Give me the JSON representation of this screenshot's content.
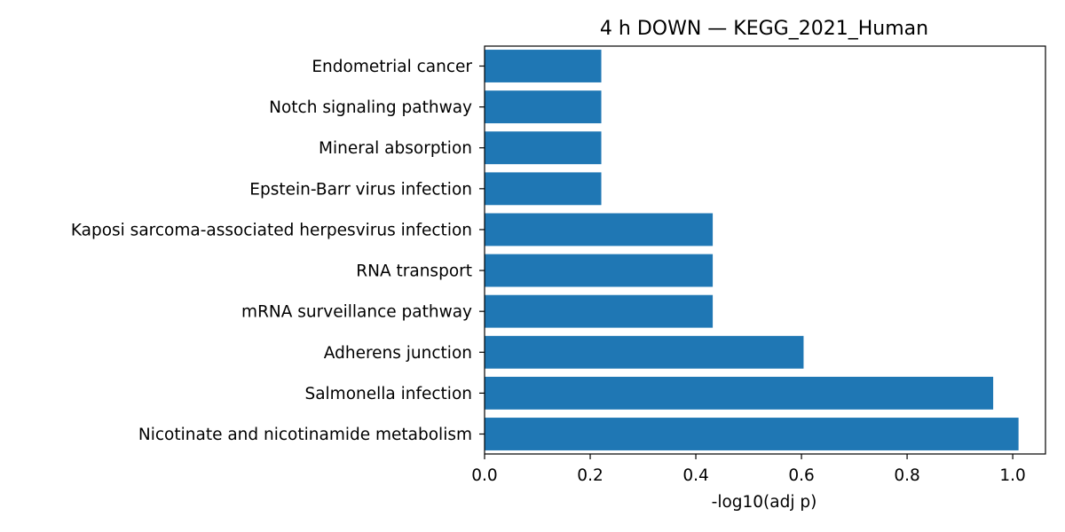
{
  "chart_data": {
    "type": "bar",
    "orientation": "horizontal",
    "title": "4 h DOWN — KEGG_2021_Human",
    "xlabel": "-log10(adj p)",
    "ylabel": "",
    "categories": [
      "Endometrial cancer",
      "Notch signaling pathway",
      "Mineral absorption",
      "Epstein-Barr virus infection",
      "Kaposi sarcoma-associated herpesvirus infection",
      "RNA transport",
      "mRNA surveillance pathway",
      "Adherens junction",
      "Salmonella infection",
      "Nicotinate and nicotinamide metabolism"
    ],
    "values": [
      0.221,
      0.221,
      0.221,
      0.221,
      0.432,
      0.432,
      0.432,
      0.604,
      0.963,
      1.011
    ],
    "xlim": [
      0,
      1.062
    ],
    "xticks": [
      "0.0",
      "0.2",
      "0.4",
      "0.6",
      "0.8",
      "1.0"
    ],
    "bar_color": "#1f77b4",
    "grid": false,
    "legend": "none"
  }
}
